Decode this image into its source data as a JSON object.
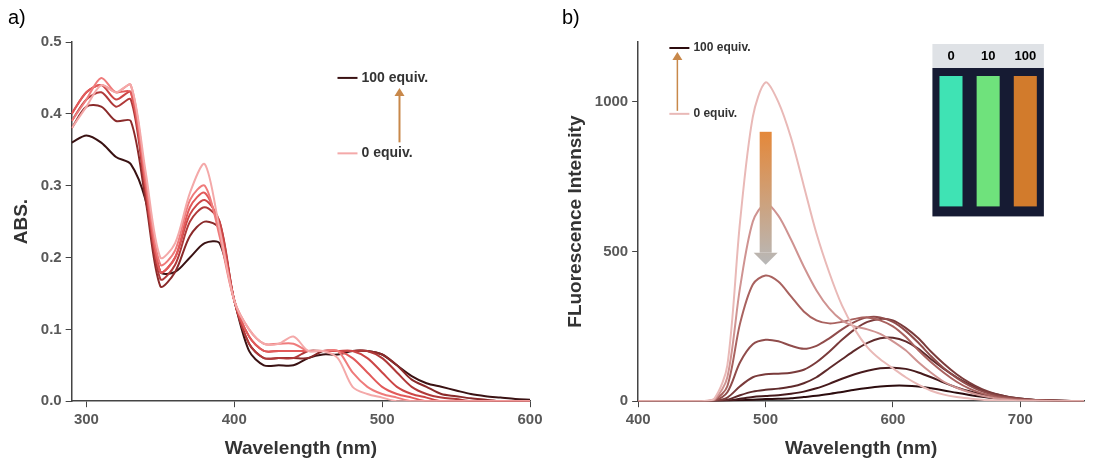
{
  "chart_data": [
    {
      "panel": "a)",
      "type": "line",
      "x_label": "Wavelength (nm)",
      "y_label": "ABS.",
      "xlim": [
        290,
        600
      ],
      "xticks": [
        300,
        400,
        500,
        600
      ],
      "ylim": [
        0,
        0.5
      ],
      "yticks": [
        {
          "value": 0,
          "label": "0.0"
        },
        0.1,
        0.2,
        0.3,
        0.4,
        0.5
      ],
      "grid": false,
      "annotations": [
        "100 equiv.",
        "0 equiv."
      ],
      "x": [
        290,
        300,
        310,
        320,
        330,
        340,
        350,
        360,
        370,
        380,
        390,
        400,
        410,
        420,
        430,
        440,
        450,
        460,
        470,
        480,
        490,
        500,
        510,
        520,
        530,
        540,
        550,
        560,
        570,
        580,
        590,
        600
      ],
      "series": [
        {
          "color": "#f4a9a9",
          "values": [
            0.38,
            0.41,
            0.44,
            0.43,
            0.44,
            0.32,
            0.2,
            0.22,
            0.29,
            0.33,
            0.24,
            0.14,
            0.1,
            0.08,
            0.08,
            0.09,
            0.07,
            0.07,
            0.06,
            0.02,
            0.01,
            0.005,
            0,
            0,
            0,
            0,
            0,
            0,
            0,
            0,
            0,
            0
          ]
        },
        {
          "color": "#ef7b7b",
          "values": [
            0.39,
            0.42,
            0.45,
            0.43,
            0.44,
            0.31,
            0.19,
            0.21,
            0.28,
            0.3,
            0.23,
            0.14,
            0.1,
            0.08,
            0.08,
            0.08,
            0.07,
            0.07,
            0.07,
            0.04,
            0.02,
            0.01,
            0.005,
            0,
            0,
            0,
            0,
            0,
            0,
            0,
            0,
            0
          ]
        },
        {
          "color": "#e25a5a",
          "values": [
            0.4,
            0.43,
            0.44,
            0.43,
            0.43,
            0.3,
            0.18,
            0.2,
            0.27,
            0.29,
            0.24,
            0.14,
            0.09,
            0.07,
            0.07,
            0.07,
            0.07,
            0.07,
            0.07,
            0.06,
            0.04,
            0.02,
            0.01,
            0.005,
            0,
            0,
            0,
            0,
            0,
            0,
            0,
            0
          ]
        },
        {
          "color": "#cc4646",
          "values": [
            0.4,
            0.43,
            0.44,
            0.42,
            0.43,
            0.3,
            0.18,
            0.2,
            0.26,
            0.28,
            0.25,
            0.14,
            0.09,
            0.07,
            0.07,
            0.07,
            0.07,
            0.07,
            0.07,
            0.07,
            0.06,
            0.04,
            0.02,
            0.01,
            0.005,
            0,
            0,
            0,
            0,
            0,
            0,
            0
          ]
        },
        {
          "color": "#b03939",
          "values": [
            0.39,
            0.42,
            0.43,
            0.41,
            0.42,
            0.29,
            0.17,
            0.19,
            0.25,
            0.27,
            0.25,
            0.14,
            0.08,
            0.06,
            0.06,
            0.06,
            0.07,
            0.07,
            0.07,
            0.07,
            0.07,
            0.06,
            0.04,
            0.02,
            0.01,
            0.005,
            0.003,
            0,
            0,
            0,
            0,
            0
          ]
        },
        {
          "color": "#8a2a2a",
          "values": [
            0.38,
            0.41,
            0.41,
            0.39,
            0.39,
            0.28,
            0.16,
            0.18,
            0.23,
            0.25,
            0.24,
            0.14,
            0.08,
            0.06,
            0.06,
            0.06,
            0.06,
            0.07,
            0.07,
            0.07,
            0.07,
            0.065,
            0.05,
            0.03,
            0.02,
            0.01,
            0.007,
            0.004,
            0.002,
            0,
            0,
            0
          ]
        },
        {
          "color": "#3a1213",
          "values": [
            0.36,
            0.37,
            0.36,
            0.34,
            0.33,
            0.28,
            0.18,
            0.18,
            0.2,
            0.22,
            0.22,
            0.14,
            0.07,
            0.05,
            0.05,
            0.05,
            0.06,
            0.065,
            0.065,
            0.07,
            0.07,
            0.065,
            0.05,
            0.035,
            0.025,
            0.02,
            0.015,
            0.01,
            0.007,
            0.005,
            0.003,
            0.002
          ]
        }
      ]
    },
    {
      "panel": "b)",
      "type": "line",
      "x_label": "Wavelength (nm)",
      "y_label": "FLuorescence Intensity",
      "xlim": [
        400,
        750
      ],
      "xticks": [
        400,
        500,
        600,
        700
      ],
      "ylim": [
        0,
        1200
      ],
      "yticks": [
        0,
        500,
        1000
      ],
      "grid": false,
      "annotations": [
        "100 equiv.",
        "0 equiv."
      ],
      "inset_labels": [
        "0",
        "10",
        "100"
      ],
      "x": [
        400,
        410,
        420,
        430,
        440,
        450,
        460,
        470,
        480,
        490,
        500,
        510,
        520,
        530,
        540,
        550,
        560,
        570,
        580,
        590,
        600,
        610,
        620,
        630,
        640,
        650,
        660,
        670,
        680,
        690,
        700,
        710,
        720,
        730,
        740,
        750
      ],
      "series": [
        {
          "color": "#e9b9b7",
          "values": [
            0,
            0,
            0,
            0,
            0,
            0,
            10,
            120,
            600,
            950,
            1065,
            1000,
            880,
            720,
            560,
            430,
            320,
            240,
            180,
            140,
            110,
            80,
            55,
            35,
            22,
            14,
            9,
            5,
            3,
            2,
            0,
            0,
            0,
            0,
            0,
            0
          ]
        },
        {
          "color": "#cf9391",
          "values": [
            0,
            0,
            0,
            0,
            0,
            0,
            6,
            80,
            380,
            600,
            660,
            620,
            540,
            450,
            370,
            310,
            270,
            250,
            240,
            225,
            200,
            170,
            130,
            95,
            65,
            45,
            30,
            18,
            10,
            6,
            3,
            2,
            1,
            0,
            0,
            0
          ]
        },
        {
          "color": "#a9625f",
          "values": [
            0,
            0,
            0,
            0,
            0,
            0,
            4,
            50,
            260,
            390,
            420,
            400,
            350,
            300,
            270,
            260,
            265,
            275,
            280,
            270,
            250,
            215,
            170,
            130,
            95,
            65,
            42,
            26,
            15,
            9,
            5,
            3,
            2,
            1,
            0,
            0
          ]
        },
        {
          "color": "#904c4b",
          "values": [
            0,
            0,
            0,
            0,
            0,
            0,
            2,
            30,
            130,
            190,
            205,
            200,
            185,
            175,
            185,
            210,
            240,
            265,
            280,
            280,
            265,
            235,
            195,
            150,
            110,
            78,
            52,
            33,
            20,
            12,
            7,
            4,
            2,
            1,
            0,
            0
          ]
        },
        {
          "color": "#7a3b3b",
          "values": [
            0,
            0,
            0,
            0,
            0,
            0,
            1,
            12,
            50,
            80,
            90,
            92,
            95,
            105,
            130,
            165,
            205,
            240,
            265,
            275,
            270,
            245,
            210,
            165,
            125,
            90,
            62,
            40,
            25,
            15,
            9,
            5,
            3,
            2,
            1,
            0
          ]
        },
        {
          "color": "#5f2a2b",
          "values": [
            0,
            0,
            0,
            0,
            0,
            0,
            0,
            5,
            20,
            32,
            38,
            42,
            48,
            60,
            80,
            110,
            140,
            170,
            195,
            210,
            212,
            200,
            175,
            140,
            108,
            80,
            56,
            37,
            24,
            15,
            9,
            5,
            3,
            2,
            1,
            0
          ]
        },
        {
          "color": "#471a1c",
          "values": [
            0,
            0,
            0,
            0,
            0,
            0,
            0,
            2,
            8,
            14,
            17,
            20,
            25,
            32,
            43,
            58,
            75,
            90,
            102,
            110,
            112,
            108,
            96,
            80,
            62,
            46,
            33,
            23,
            15,
            9,
            6,
            4,
            2,
            1,
            0,
            0
          ]
        },
        {
          "color": "#2c0c0e",
          "values": [
            0,
            0,
            0,
            0,
            0,
            0,
            0,
            1,
            3,
            5,
            7,
            8,
            10,
            14,
            18,
            24,
            31,
            38,
            44,
            49,
            52,
            52,
            49,
            43,
            36,
            28,
            21,
            15,
            10,
            7,
            4,
            3,
            2,
            1,
            0,
            0
          ]
        }
      ]
    }
  ]
}
